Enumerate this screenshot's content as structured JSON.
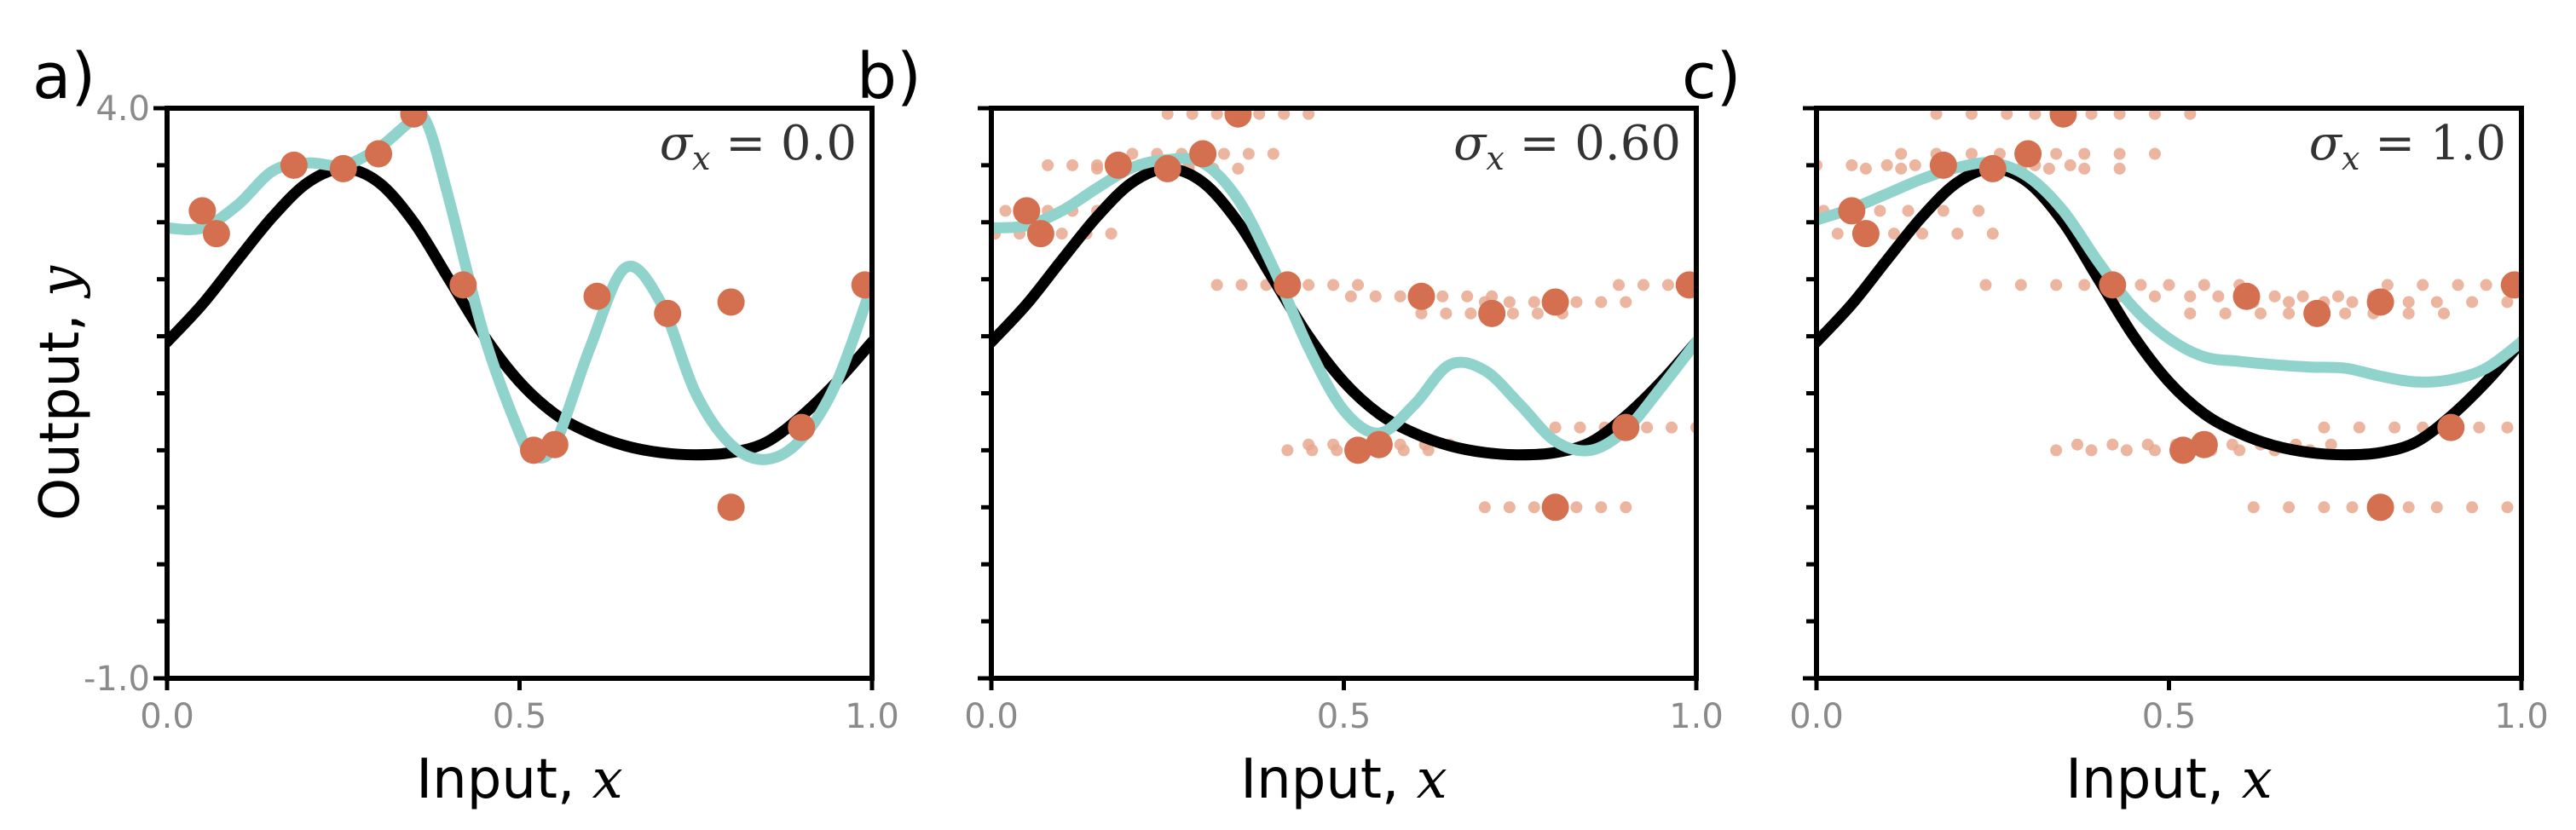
{
  "colors": {
    "true_function": "#000000",
    "fitted_model": "#8fd3cc",
    "training_points": "#d4704f",
    "noisy_samples": "#e8a88f"
  },
  "chart_data": [
    {
      "type": "line",
      "panel_label": "a)",
      "annotation": {
        "symbol": "σ",
        "subscript": "x",
        "rest": " = 0.0"
      },
      "xlabel": {
        "text": "Input, ",
        "var": "x"
      },
      "ylabel": {
        "text": "Output, ",
        "var": "y"
      },
      "xlim": [
        0.0,
        1.0
      ],
      "ylim": [
        -1.0,
        4.0
      ],
      "x_tick_labels": [
        "0.0",
        "0.5",
        "1.0"
      ],
      "y_tick_labels": [
        "4.0",
        "-1.0"
      ],
      "y_minor_ticks": [
        -0.5,
        0.0,
        0.5,
        1.0,
        1.5,
        2.0,
        2.5,
        3.0,
        3.5
      ],
      "grid": false,
      "series": [
        {
          "x": [
            0,
            0.05,
            0.1,
            0.15,
            0.2,
            0.25,
            0.3,
            0.35,
            0.4,
            0.45,
            0.5,
            0.55,
            0.6,
            0.65,
            0.7,
            0.75,
            0.8,
            0.85,
            0.9,
            0.95,
            1.0
          ],
          "y": [
            1.95,
            2.28,
            2.67,
            3.05,
            3.35,
            3.47,
            3.35,
            3.0,
            2.5,
            2.0,
            1.6,
            1.32,
            1.15,
            1.04,
            0.98,
            0.96,
            0.98,
            1.07,
            1.3,
            1.6,
            1.95
          ]
        },
        {
          "x": [
            0,
            0.05,
            0.1,
            0.15,
            0.2,
            0.25,
            0.3,
            0.35,
            0.37,
            0.4,
            0.45,
            0.5,
            0.52,
            0.55,
            0.6,
            0.65,
            0.7,
            0.75,
            0.8,
            0.85,
            0.9,
            0.95,
            1.0
          ],
          "y": [
            2.95,
            2.95,
            3.15,
            3.45,
            3.52,
            3.5,
            3.65,
            3.9,
            3.85,
            3.2,
            2.0,
            1.15,
            0.95,
            1.05,
            1.9,
            2.6,
            2.3,
            1.5,
            1.05,
            0.92,
            1.1,
            1.6,
            2.45
          ]
        }
      ],
      "points": {
        "x": [
          0.05,
          0.07,
          0.18,
          0.25,
          0.3,
          0.35,
          0.42,
          0.52,
          0.55,
          0.61,
          0.71,
          0.8,
          0.8,
          0.9,
          0.99
        ],
        "y": [
          3.1,
          2.9,
          3.5,
          3.47,
          3.6,
          3.95,
          2.45,
          1.0,
          1.05,
          2.35,
          2.2,
          2.3,
          0.5,
          1.2,
          2.45
        ]
      },
      "noisy_x_offsets": []
    },
    {
      "type": "line",
      "panel_label": "b)",
      "annotation": {
        "symbol": "σ",
        "subscript": "x",
        "rest": " = 0.60"
      },
      "xlabel": {
        "text": "Input, ",
        "var": "x"
      },
      "ylabel": {
        "text": "",
        "var": ""
      },
      "xlim": [
        0.0,
        1.0
      ],
      "ylim": [
        -1.0,
        4.0
      ],
      "x_tick_labels": [
        "0.0",
        "0.5",
        "1.0"
      ],
      "y_tick_labels": [],
      "y_minor_ticks": [
        -0.5,
        0.0,
        0.5,
        1.0,
        1.5,
        2.0,
        2.5,
        3.0,
        3.5
      ],
      "grid": false,
      "series": [
        {
          "x": [
            0,
            0.05,
            0.1,
            0.15,
            0.2,
            0.25,
            0.3,
            0.35,
            0.4,
            0.45,
            0.5,
            0.55,
            0.6,
            0.65,
            0.7,
            0.75,
            0.8,
            0.85,
            0.9,
            0.95,
            1.0
          ],
          "y": [
            1.95,
            2.28,
            2.67,
            3.05,
            3.35,
            3.47,
            3.35,
            3.0,
            2.5,
            2.0,
            1.6,
            1.32,
            1.15,
            1.04,
            0.98,
            0.96,
            0.98,
            1.07,
            1.3,
            1.6,
            1.95
          ]
        },
        {
          "x": [
            0,
            0.05,
            0.1,
            0.15,
            0.2,
            0.25,
            0.3,
            0.35,
            0.4,
            0.45,
            0.5,
            0.55,
            0.6,
            0.65,
            0.7,
            0.75,
            0.8,
            0.85,
            0.9,
            0.95,
            1.0
          ],
          "y": [
            2.95,
            2.97,
            3.1,
            3.3,
            3.48,
            3.55,
            3.52,
            3.2,
            2.6,
            1.9,
            1.35,
            1.15,
            1.4,
            1.75,
            1.7,
            1.4,
            1.08,
            1.0,
            1.18,
            1.55,
            1.95
          ]
        }
      ],
      "points": {
        "x": [
          0.05,
          0.07,
          0.18,
          0.25,
          0.3,
          0.35,
          0.42,
          0.52,
          0.55,
          0.61,
          0.71,
          0.8,
          0.8,
          0.9,
          0.99
        ],
        "y": [
          3.1,
          2.9,
          3.5,
          3.47,
          3.6,
          3.95,
          2.45,
          1.0,
          1.05,
          2.35,
          2.2,
          2.3,
          0.5,
          1.2,
          2.45
        ]
      },
      "noisy_x_offsets": [
        -0.1,
        -0.065,
        -0.03,
        0.03,
        0.065,
        0.1
      ]
    },
    {
      "type": "line",
      "panel_label": "c)",
      "annotation": {
        "symbol": "σ",
        "subscript": "x",
        "rest": " = 1.0"
      },
      "xlabel": {
        "text": "Input, ",
        "var": "x"
      },
      "ylabel": {
        "text": "",
        "var": ""
      },
      "xlim": [
        0.0,
        1.0
      ],
      "ylim": [
        -1.0,
        4.0
      ],
      "x_tick_labels": [
        "0.0",
        "0.5",
        "1.0"
      ],
      "y_tick_labels": [],
      "y_minor_ticks": [
        -0.5,
        0.0,
        0.5,
        1.0,
        1.5,
        2.0,
        2.5,
        3.0,
        3.5
      ],
      "grid": false,
      "series": [
        {
          "x": [
            0,
            0.05,
            0.1,
            0.15,
            0.2,
            0.25,
            0.3,
            0.35,
            0.4,
            0.45,
            0.5,
            0.55,
            0.6,
            0.65,
            0.7,
            0.75,
            0.8,
            0.85,
            0.9,
            0.95,
            1.0
          ],
          "y": [
            1.95,
            2.28,
            2.67,
            3.05,
            3.35,
            3.47,
            3.35,
            3.0,
            2.5,
            2.0,
            1.6,
            1.32,
            1.15,
            1.04,
            0.98,
            0.96,
            0.98,
            1.07,
            1.3,
            1.6,
            1.95
          ]
        },
        {
          "x": [
            0,
            0.05,
            0.1,
            0.15,
            0.2,
            0.25,
            0.3,
            0.35,
            0.4,
            0.45,
            0.5,
            0.55,
            0.6,
            0.65,
            0.7,
            0.75,
            0.8,
            0.85,
            0.9,
            0.95,
            1.0
          ],
          "y": [
            3.02,
            3.12,
            3.25,
            3.38,
            3.48,
            3.52,
            3.4,
            3.1,
            2.65,
            2.25,
            1.98,
            1.82,
            1.78,
            1.75,
            1.73,
            1.72,
            1.65,
            1.6,
            1.62,
            1.72,
            1.95
          ]
        }
      ],
      "points": {
        "x": [
          0.05,
          0.07,
          0.18,
          0.25,
          0.3,
          0.35,
          0.42,
          0.52,
          0.55,
          0.61,
          0.71,
          0.8,
          0.8,
          0.9,
          0.99
        ],
        "y": [
          3.1,
          2.9,
          3.5,
          3.47,
          3.6,
          3.95,
          2.45,
          1.0,
          1.05,
          2.35,
          2.2,
          2.3,
          0.5,
          1.2,
          2.45
        ]
      },
      "noisy_x_offsets": [
        -0.18,
        -0.13,
        -0.08,
        -0.04,
        0.04,
        0.08,
        0.13,
        0.18
      ]
    }
  ]
}
